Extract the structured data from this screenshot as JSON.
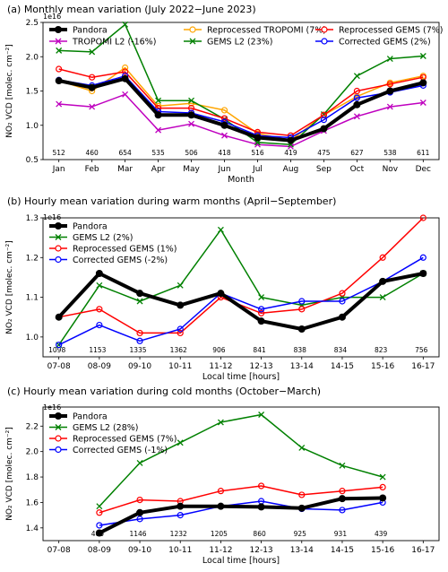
{
  "chart_data": [
    {
      "type": "line",
      "title": "(a) Monthly mean variation (July 2022−June 2023)",
      "xlabel": "Month",
      "ylabel": "NO₂ VCD [molec. cm⁻²]",
      "multiplier": "1e16",
      "categories": [
        "Jan",
        "Feb",
        "Mar",
        "Apr",
        "May",
        "Jun",
        "Jul",
        "Aug",
        "Sep",
        "Oct",
        "Nov",
        "Dec"
      ],
      "ylim": [
        0.5,
        2.5
      ],
      "yticks": [
        "0.5",
        "1.0",
        "1.5",
        "2.0",
        "2.5"
      ],
      "counts": [
        "512",
        "460",
        "654",
        "535",
        "506",
        "418",
        "516",
        "419",
        "475",
        "627",
        "538",
        "611"
      ],
      "legend_position": "top",
      "series": [
        {
          "name": "Pandora",
          "color": "#000000",
          "marker": "filled",
          "width": 4,
          "values": [
            1.65,
            1.55,
            1.68,
            1.15,
            1.15,
            1.0,
            0.82,
            0.78,
            0.95,
            1.3,
            1.5,
            1.62
          ]
        },
        {
          "name": "TROPOMI L2 (-16%)",
          "color": "#bf00bf",
          "marker": "x",
          "width": 1.5,
          "values": [
            1.31,
            1.27,
            1.45,
            0.93,
            1.02,
            0.85,
            0.72,
            0.69,
            0.92,
            1.13,
            1.27,
            1.33
          ]
        },
        {
          "name": "Reprocessed TROPOMI (7%)",
          "color": "#ffa500",
          "marker": "open",
          "width": 1.5,
          "values": [
            1.65,
            1.5,
            1.84,
            1.28,
            1.32,
            1.22,
            0.88,
            0.78,
            1.15,
            1.42,
            1.62,
            1.72
          ]
        },
        {
          "name": "GEMS L2 (23%)",
          "color": "#008000",
          "marker": "x",
          "width": 1.5,
          "values": [
            2.09,
            2.07,
            2.47,
            1.36,
            1.36,
            1.09,
            0.75,
            0.72,
            1.16,
            1.72,
            1.97,
            2.01
          ]
        },
        {
          "name": "Reprocessed GEMS (7%)",
          "color": "#ff0000",
          "marker": "open",
          "width": 1.5,
          "values": [
            1.82,
            1.7,
            1.78,
            1.25,
            1.25,
            1.1,
            0.9,
            0.85,
            1.15,
            1.5,
            1.6,
            1.7
          ]
        },
        {
          "name": "Corrected GEMS (2%)",
          "color": "#0000ff",
          "marker": "open",
          "width": 1.5,
          "values": [
            1.66,
            1.58,
            1.72,
            1.2,
            1.18,
            1.05,
            0.85,
            0.82,
            1.08,
            1.4,
            1.48,
            1.58
          ]
        }
      ]
    },
    {
      "type": "line",
      "title": "(b) Hourly mean variation during warm months (April−September)",
      "xlabel": "Local time [hours]",
      "ylabel": "NO₂ VCD [molec. cm⁻²]",
      "multiplier": "1e16",
      "categories": [
        "07-08",
        "08-09",
        "09-10",
        "10-11",
        "11-12",
        "12-13",
        "13-14",
        "14-15",
        "15-16",
        "16-17"
      ],
      "ylim": [
        0.95,
        1.3
      ],
      "yticks": [
        "1.0",
        "1.1",
        "1.2",
        "1.3"
      ],
      "counts": [
        "1098",
        "1153",
        "1335",
        "1362",
        "906",
        "841",
        "838",
        "834",
        "823",
        "756"
      ],
      "legend_position": "top-left",
      "series": [
        {
          "name": "Pandora",
          "color": "#000000",
          "marker": "filled",
          "width": 4,
          "values": [
            1.05,
            1.16,
            1.11,
            1.08,
            1.11,
            1.04,
            1.02,
            1.05,
            1.14,
            1.16
          ]
        },
        {
          "name": "GEMS L2 (2%)",
          "color": "#008000",
          "marker": "x",
          "width": 1.5,
          "values": [
            0.98,
            1.13,
            1.09,
            1.13,
            1.27,
            1.1,
            1.08,
            1.1,
            1.1,
            1.16
          ]
        },
        {
          "name": "Reprocessed GEMS (1%)",
          "color": "#ff0000",
          "marker": "open",
          "width": 1.5,
          "values": [
            1.05,
            1.07,
            1.01,
            1.01,
            1.1,
            1.06,
            1.07,
            1.11,
            1.2,
            1.3
          ]
        },
        {
          "name": "Corrected GEMS (-2%)",
          "color": "#0000ff",
          "marker": "open",
          "width": 1.5,
          "values": [
            0.98,
            1.03,
            0.99,
            1.02,
            1.11,
            1.07,
            1.09,
            1.09,
            1.14,
            1.2
          ]
        }
      ]
    },
    {
      "type": "line",
      "title": "(c) Hourly mean variation during cold months (October−March)",
      "xlabel": "Local time [hours]",
      "ylabel": "NO₂ VCD [molec. cm⁻²]",
      "multiplier": "1e16",
      "categories": [
        "07-08",
        "08-09",
        "09-10",
        "10-11",
        "11-12",
        "12-13",
        "13-14",
        "14-15",
        "15-16",
        "16-17"
      ],
      "ylim": [
        1.3,
        2.35
      ],
      "yticks": [
        "1.4",
        "1.6",
        "1.8",
        "2.0",
        "2.2"
      ],
      "counts": [
        "",
        "400",
        "1146",
        "1232",
        "1205",
        "860",
        "925",
        "931",
        "439",
        ""
      ],
      "legend_position": "top-left",
      "series": [
        {
          "name": "Pandora",
          "color": "#000000",
          "marker": "filled",
          "width": 4,
          "values": [
            null,
            1.36,
            1.52,
            1.57,
            1.57,
            1.565,
            1.555,
            1.63,
            1.635,
            null
          ]
        },
        {
          "name": "GEMS L2 (28%)",
          "color": "#008000",
          "marker": "x",
          "width": 1.5,
          "values": [
            null,
            1.57,
            1.91,
            2.07,
            2.23,
            2.29,
            2.03,
            1.89,
            1.8,
            null
          ]
        },
        {
          "name": "Reprocessed GEMS (7%)",
          "color": "#ff0000",
          "marker": "open",
          "width": 1.5,
          "values": [
            null,
            1.52,
            1.62,
            1.61,
            1.69,
            1.73,
            1.66,
            1.69,
            1.72,
            null
          ]
        },
        {
          "name": "Corrected GEMS (-1%)",
          "color": "#0000ff",
          "marker": "open",
          "width": 1.5,
          "values": [
            null,
            1.42,
            1.47,
            1.5,
            1.57,
            1.61,
            1.55,
            1.54,
            1.6,
            null
          ]
        }
      ]
    }
  ]
}
